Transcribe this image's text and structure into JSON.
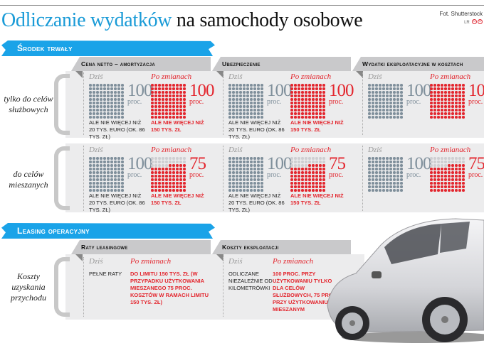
{
  "header": {
    "title_highlight": "Odliczanie wydatków",
    "title_rest": "na samochody osobowe",
    "credit": "Fot. Shutterstock",
    "credit_tag": "LR"
  },
  "sections": [
    {
      "banner": "Środek trwały",
      "columns": [
        "Cena netto – amortyzacja",
        "Ubezpieczenie",
        "Wydatki eksploatacyjne w kosztach"
      ],
      "rows": [
        {
          "label_line1": "tylko do celów",
          "label_line2": "służbowych",
          "cells": [
            {
              "today_label": "Dziś",
              "today_pct": "100",
              "today_unit": "proc.",
              "today_note": "Ale nie więcej niż 20 tys. euro (ok. 86 tys. zł)",
              "after_label": "Po zmianach",
              "after_pct": "100",
              "after_unit": "proc.",
              "after_note": "Ale nie więcej niż 150 tys. zł"
            },
            {
              "today_label": "Dziś",
              "today_pct": "100",
              "today_unit": "proc.",
              "today_note": "Ale nie więcej niż 20 tys. euro (ok. 86 tys. zł)",
              "after_label": "Po zmianach",
              "after_pct": "100",
              "after_unit": "proc.",
              "after_note": "Ale nie więcej niż 150 tys. zł"
            },
            {
              "today_label": "Dziś",
              "today_pct": "100",
              "today_unit": "proc.",
              "today_note": "",
              "after_label": "Po zmianach",
              "after_pct": "100",
              "after_unit": "proc.",
              "after_note": ""
            }
          ]
        },
        {
          "label_line1": "do celów",
          "label_line2": "mieszanych",
          "cells": [
            {
              "today_label": "Dziś",
              "today_pct": "100",
              "today_unit": "proc.",
              "today_note": "Ale nie więcej niż 20 tys. euro (ok. 86 tys. zł)",
              "after_label": "Po zmianach",
              "after_pct": "75",
              "after_unit": "proc.",
              "after_note": "Ale nie więcej niż 150 tys. zł"
            },
            {
              "today_label": "Dziś",
              "today_pct": "100",
              "today_unit": "proc.",
              "today_note": "Ale nie więcej niż 20 tys. euro (ok. 86 tys. zł)",
              "after_label": "Po zmianach",
              "after_pct": "75",
              "after_unit": "proc.",
              "after_note": "Ale nie więcej niż 150 tys. zł"
            },
            {
              "today_label": "Dziś",
              "today_pct": "100",
              "today_unit": "proc.",
              "today_note": "",
              "after_label": "Po zmianach",
              "after_pct": "75",
              "after_unit": "proc.",
              "after_note": ""
            }
          ]
        }
      ]
    },
    {
      "banner": "Leasing operacyjny",
      "columns": [
        "Raty leasingowe",
        "Koszty eksploatacji"
      ],
      "row_label_lines": [
        "Koszty",
        "uzyskania",
        "przychodu"
      ],
      "cells": [
        {
          "today_label": "Dziś",
          "today_text": "Pełne raty",
          "after_label": "Po zmianach",
          "after_text": "Do limitu 150 tys. zł (w przypadku użytkowania mieszanego 75 proc. kosztów w ramach limitu 150 tys. zł)"
        },
        {
          "today_label": "Dziś",
          "today_text": "Odliczane niezależnie od kilometrówki",
          "after_label": "Po zmianach",
          "after_text": "100 proc. przy użytkowaniu tylko dla celów służbowych, 75 proc. przy użytkowaniu mieszanym"
        }
      ]
    }
  ],
  "colors": {
    "blue": "#1aa3e8",
    "red": "#e3262e",
    "gray_dot": "#7f8f9b",
    "panel": "#ececed"
  }
}
